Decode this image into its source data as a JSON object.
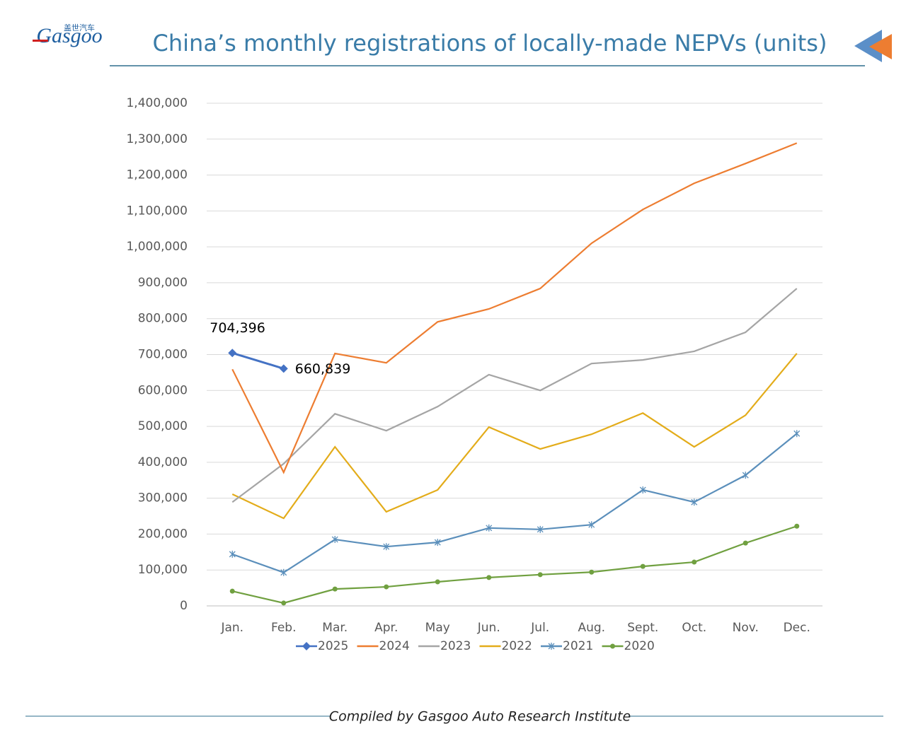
{
  "header": {
    "logo": "Gasgoo",
    "logo_cn": "盖世汽车"
  },
  "footer": "Compiled by Gasgoo Auto Research Institute",
  "chart_data": {
    "type": "line",
    "title": "China’s monthly registrations of locally-made NEPVs (units)",
    "categories": [
      "Jan.",
      "Feb.",
      "Mar.",
      "Apr.",
      "May",
      "Jun.",
      "Jul.",
      "Aug.",
      "Sept.",
      "Oct.",
      "Nov.",
      "Dec."
    ],
    "ylim": [
      0,
      1400000
    ],
    "yticks": [
      0,
      {
        "value": 100000,
        "label": "100,000"
      },
      {
        "value": 200000,
        "label": "200,000"
      },
      {
        "value": 300000,
        "label": "300,000"
      },
      {
        "value": 400000,
        "label": "400,000"
      },
      {
        "value": 500000,
        "label": "500,000"
      },
      {
        "value": 600000,
        "label": "600,000"
      },
      {
        "value": 700000,
        "label": "700,000"
      },
      {
        "value": 800000,
        "label": "800,000"
      },
      {
        "value": 900000,
        "label": "900,000"
      },
      {
        "value": 1000000,
        "label": "1,000,000"
      },
      {
        "value": 1100000,
        "label": "1,100,000"
      },
      {
        "value": 1200000,
        "label": "1,200,000"
      },
      {
        "value": 1300000,
        "label": "1,300,000"
      },
      {
        "value": 1400000,
        "label": "1,400,000"
      }
    ],
    "grid": true,
    "legend": "bottom",
    "series": [
      {
        "name": "2025",
        "color": "#4472c4",
        "marker": "diamond",
        "values": [
          704396,
          660839,
          null,
          null,
          null,
          null,
          null,
          null,
          null,
          null,
          null,
          null
        ],
        "value_labels": [
          "704,396",
          "660,839",
          null,
          null,
          null,
          null,
          null,
          null,
          null,
          null,
          null,
          null
        ]
      },
      {
        "name": "2024",
        "color": "#ed7d31",
        "marker": null,
        "values": [
          659000,
          372000,
          703000,
          677000,
          791000,
          827000,
          884000,
          1010000,
          1104000,
          1177000,
          1232000,
          1289000
        ]
      },
      {
        "name": "2023",
        "color": "#a5a5a5",
        "marker": null,
        "values": [
          289000,
          396000,
          535000,
          488000,
          555000,
          644000,
          600000,
          675000,
          685000,
          709000,
          762000,
          884000
        ]
      },
      {
        "name": "2022",
        "color": "#e3ac1a",
        "marker": null,
        "values": [
          311000,
          244000,
          443000,
          262000,
          323000,
          498000,
          437000,
          478000,
          537000,
          443000,
          531000,
          703000
        ]
      },
      {
        "name": "2021",
        "color": "#5b8fbb",
        "marker": "star",
        "values": [
          144000,
          93000,
          185000,
          165000,
          177000,
          217000,
          213000,
          226000,
          323000,
          289000,
          364000,
          480000
        ]
      },
      {
        "name": "2020",
        "color": "#70a040",
        "marker": "circle",
        "values": [
          41000,
          8000,
          47000,
          53000,
          67000,
          79000,
          87000,
          94000,
          110000,
          122000,
          175000,
          222000
        ]
      }
    ]
  }
}
